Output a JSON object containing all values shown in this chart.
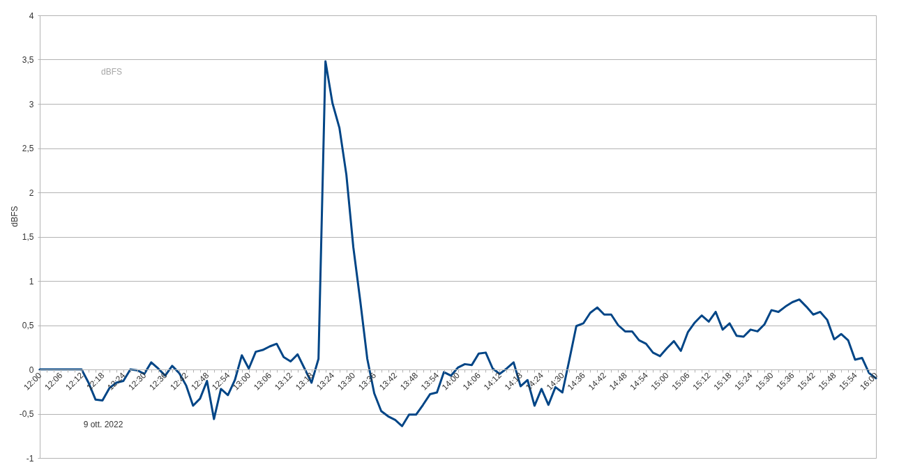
{
  "chart_data": {
    "type": "line",
    "ylabel": "dBFS",
    "annotations": [
      "dBFS",
      "9 ott. 2022"
    ],
    "color": "#004586",
    "line_style": "solid",
    "grid": "y",
    "xlim": [
      "2022-10-09T12:00",
      "2022-10-09T16:00"
    ],
    "ylim": [
      -1,
      4
    ],
    "yticks": [
      -1,
      {
        "value": -0.5,
        "label": "-0,5"
      },
      0,
      {
        "value": 0.5,
        "label": "0,5"
      },
      1,
      {
        "value": 1.5,
        "label": "1,5"
      },
      2,
      {
        "value": 2.5,
        "label": "2,5"
      },
      3,
      {
        "value": 3.5,
        "label": "3,5"
      },
      4
    ],
    "xticks": [
      {
        "value": "2022-10-09T12:00",
        "label": "12:00"
      },
      {
        "value": "2022-10-09T12:02",
        "label": null
      },
      {
        "value": "2022-10-09T12:04",
        "label": null
      },
      {
        "value": "2022-10-09T12:06",
        "label": "12:06"
      },
      {
        "value": "2022-10-09T12:08",
        "label": null
      },
      {
        "value": "2022-10-09T12:10",
        "label": null
      },
      {
        "value": "2022-10-09T12:12",
        "label": "12:12"
      },
      {
        "value": "2022-10-09T12:14",
        "label": null
      },
      {
        "value": "2022-10-09T12:16",
        "label": null
      },
      {
        "value": "2022-10-09T12:18",
        "label": "12:18"
      },
      {
        "value": "2022-10-09T12:20",
        "label": null
      },
      {
        "value": "2022-10-09T12:22",
        "label": null
      },
      {
        "value": "2022-10-09T12:24",
        "label": "12:24"
      },
      {
        "value": "2022-10-09T12:26",
        "label": null
      },
      {
        "value": "2022-10-09T12:28",
        "label": null
      },
      {
        "value": "2022-10-09T12:30",
        "label": "12:30"
      },
      {
        "value": "2022-10-09T12:32",
        "label": null
      },
      {
        "value": "2022-10-09T12:34",
        "label": null
      },
      {
        "value": "2022-10-09T12:36",
        "label": "12:36"
      },
      {
        "value": "2022-10-09T12:38",
        "label": null
      },
      {
        "value": "2022-10-09T12:40",
        "label": null
      },
      {
        "value": "2022-10-09T12:42",
        "label": "12:42"
      },
      {
        "value": "2022-10-09T12:44",
        "label": null
      },
      {
        "value": "2022-10-09T12:46",
        "label": null
      },
      {
        "value": "2022-10-09T12:48",
        "label": "12:48"
      },
      {
        "value": "2022-10-09T12:50",
        "label": null
      },
      {
        "value": "2022-10-09T12:52",
        "label": null
      },
      {
        "value": "2022-10-09T12:54",
        "label": "12:54"
      },
      {
        "value": "2022-10-09T12:56",
        "label": null
      },
      {
        "value": "2022-10-09T12:58",
        "label": null
      },
      {
        "value": "2022-10-09T13:00",
        "label": "13:00"
      },
      {
        "value": "2022-10-09T13:02",
        "label": null
      },
      {
        "value": "2022-10-09T13:04",
        "label": null
      },
      {
        "value": "2022-10-09T13:06",
        "label": "13:06"
      },
      {
        "value": "2022-10-09T13:08",
        "label": null
      },
      {
        "value": "2022-10-09T13:10",
        "label": null
      },
      {
        "value": "2022-10-09T13:12",
        "label": "13:12"
      },
      {
        "value": "2022-10-09T13:14",
        "label": null
      },
      {
        "value": "2022-10-09T13:16",
        "label": null
      },
      {
        "value": "2022-10-09T13:18",
        "label": "13:18"
      },
      {
        "value": "2022-10-09T13:20",
        "label": null
      },
      {
        "value": "2022-10-09T13:22",
        "label": null
      },
      {
        "value": "2022-10-09T13:24",
        "label": "13:24"
      },
      {
        "value": "2022-10-09T13:26",
        "label": null
      },
      {
        "value": "2022-10-09T13:28",
        "label": null
      },
      {
        "value": "2022-10-09T13:30",
        "label": "13:30"
      },
      {
        "value": "2022-10-09T13:32",
        "label": null
      },
      {
        "value": "2022-10-09T13:34",
        "label": null
      },
      {
        "value": "2022-10-09T13:36",
        "label": "13:36"
      },
      {
        "value": "2022-10-09T13:38",
        "label": null
      },
      {
        "value": "2022-10-09T13:40",
        "label": null
      },
      {
        "value": "2022-10-09T13:42",
        "label": "13:42"
      },
      {
        "value": "2022-10-09T13:44",
        "label": null
      },
      {
        "value": "2022-10-09T13:46",
        "label": null
      },
      {
        "value": "2022-10-09T13:48",
        "label": "13:48"
      },
      {
        "value": "2022-10-09T13:50",
        "label": null
      },
      {
        "value": "2022-10-09T13:52",
        "label": null
      },
      {
        "value": "2022-10-09T13:54",
        "label": "13:54"
      },
      {
        "value": "2022-10-09T13:56",
        "label": null
      },
      {
        "value": "2022-10-09T13:58",
        "label": null
      },
      {
        "value": "2022-10-09T14:00",
        "label": "14:00"
      },
      {
        "value": "2022-10-09T14:02",
        "label": null
      },
      {
        "value": "2022-10-09T14:04",
        "label": null
      },
      {
        "value": "2022-10-09T14:06",
        "label": "14:06"
      },
      {
        "value": "2022-10-09T14:08",
        "label": null
      },
      {
        "value": "2022-10-09T14:10",
        "label": null
      },
      {
        "value": "2022-10-09T14:12",
        "label": "14:12"
      },
      {
        "value": "2022-10-09T14:14",
        "label": null
      },
      {
        "value": "2022-10-09T14:16",
        "label": null
      },
      {
        "value": "2022-10-09T14:18",
        "label": "14:18"
      },
      {
        "value": "2022-10-09T14:20",
        "label": null
      },
      {
        "value": "2022-10-09T14:22",
        "label": null
      },
      {
        "value": "2022-10-09T14:24",
        "label": "14:24"
      },
      {
        "value": "2022-10-09T14:26",
        "label": null
      },
      {
        "value": "2022-10-09T14:28",
        "label": null
      },
      {
        "value": "2022-10-09T14:30",
        "label": "14:30"
      },
      {
        "value": "2022-10-09T14:32",
        "label": null
      },
      {
        "value": "2022-10-09T14:34",
        "label": null
      },
      {
        "value": "2022-10-09T14:36",
        "label": "14:36"
      },
      {
        "value": "2022-10-09T14:38",
        "label": null
      },
      {
        "value": "2022-10-09T14:40",
        "label": null
      },
      {
        "value": "2022-10-09T14:42",
        "label": "14:42"
      },
      {
        "value": "2022-10-09T14:44",
        "label": null
      },
      {
        "value": "2022-10-09T14:46",
        "label": null
      },
      {
        "value": "2022-10-09T14:48",
        "label": "14:48"
      },
      {
        "value": "2022-10-09T14:50",
        "label": null
      },
      {
        "value": "2022-10-09T14:52",
        "label": null
      },
      {
        "value": "2022-10-09T14:54",
        "label": "14:54"
      },
      {
        "value": "2022-10-09T14:56",
        "label": null
      },
      {
        "value": "2022-10-09T14:58",
        "label": null
      },
      {
        "value": "2022-10-09T15:00",
        "label": "15:00"
      },
      {
        "value": "2022-10-09T15:02",
        "label": null
      },
      {
        "value": "2022-10-09T15:04",
        "label": null
      },
      {
        "value": "2022-10-09T15:06",
        "label": "15:06"
      },
      {
        "value": "2022-10-09T15:08",
        "label": null
      },
      {
        "value": "2022-10-09T15:10",
        "label": null
      },
      {
        "value": "2022-10-09T15:12",
        "label": "15:12"
      },
      {
        "value": "2022-10-09T15:14",
        "label": null
      },
      {
        "value": "2022-10-09T15:16",
        "label": null
      },
      {
        "value": "2022-10-09T15:18",
        "label": "15:18"
      },
      {
        "value": "2022-10-09T15:20",
        "label": null
      },
      {
        "value": "2022-10-09T15:22",
        "label": null
      },
      {
        "value": "2022-10-09T15:24",
        "label": "15:24"
      },
      {
        "value": "2022-10-09T15:26",
        "label": null
      },
      {
        "value": "2022-10-09T15:28",
        "label": null
      },
      {
        "value": "2022-10-09T15:30",
        "label": "15:30"
      },
      {
        "value": "2022-10-09T15:32",
        "label": null
      },
      {
        "value": "2022-10-09T15:34",
        "label": null
      },
      {
        "value": "2022-10-09T15:36",
        "label": "15:36"
      },
      {
        "value": "2022-10-09T15:38",
        "label": null
      },
      {
        "value": "2022-10-09T15:40",
        "label": null
      },
      {
        "value": "2022-10-09T15:42",
        "label": "15:42"
      },
      {
        "value": "2022-10-09T15:44",
        "label": null
      },
      {
        "value": "2022-10-09T15:46",
        "label": null
      },
      {
        "value": "2022-10-09T15:48",
        "label": "15:48"
      },
      {
        "value": "2022-10-09T15:50",
        "label": null
      },
      {
        "value": "2022-10-09T15:52",
        "label": null
      },
      {
        "value": "2022-10-09T15:54",
        "label": "15:54"
      },
      {
        "value": "2022-10-09T15:56",
        "label": null
      },
      {
        "value": "2022-10-09T15:58",
        "label": null
      },
      {
        "value": "2022-10-09T16:00",
        "label": "16:00"
      }
    ],
    "x": [
      "2022-10-09T12:00",
      "2022-10-09T12:02",
      "2022-10-09T12:04",
      "2022-10-09T12:06",
      "2022-10-09T12:08",
      "2022-10-09T12:10",
      "2022-10-09T12:12",
      "2022-10-09T12:14",
      "2022-10-09T12:16",
      "2022-10-09T12:18",
      "2022-10-09T12:20",
      "2022-10-09T12:22",
      "2022-10-09T12:24",
      "2022-10-09T12:26",
      "2022-10-09T12:28",
      "2022-10-09T12:30",
      "2022-10-09T12:32",
      "2022-10-09T12:34",
      "2022-10-09T12:36",
      "2022-10-09T12:38",
      "2022-10-09T12:40",
      "2022-10-09T12:42",
      "2022-10-09T12:44",
      "2022-10-09T12:46",
      "2022-10-09T12:48",
      "2022-10-09T12:50",
      "2022-10-09T12:52",
      "2022-10-09T12:54",
      "2022-10-09T12:56",
      "2022-10-09T12:58",
      "2022-10-09T13:00",
      "2022-10-09T13:02",
      "2022-10-09T13:04",
      "2022-10-09T13:06",
      "2022-10-09T13:08",
      "2022-10-09T13:10",
      "2022-10-09T13:12",
      "2022-10-09T13:14",
      "2022-10-09T13:16",
      "2022-10-09T13:18",
      "2022-10-09T13:20",
      "2022-10-09T13:22",
      "2022-10-09T13:24",
      "2022-10-09T13:26",
      "2022-10-09T13:28",
      "2022-10-09T13:30",
      "2022-10-09T13:32",
      "2022-10-09T13:34",
      "2022-10-09T13:36",
      "2022-10-09T13:38",
      "2022-10-09T13:40",
      "2022-10-09T13:42",
      "2022-10-09T13:44",
      "2022-10-09T13:46",
      "2022-10-09T13:48",
      "2022-10-09T13:50",
      "2022-10-09T13:52",
      "2022-10-09T13:54",
      "2022-10-09T13:56",
      "2022-10-09T13:58",
      "2022-10-09T14:00",
      "2022-10-09T14:02",
      "2022-10-09T14:04",
      "2022-10-09T14:06",
      "2022-10-09T14:08",
      "2022-10-09T14:10",
      "2022-10-09T14:12",
      "2022-10-09T14:14",
      "2022-10-09T14:16",
      "2022-10-09T14:18",
      "2022-10-09T14:20",
      "2022-10-09T14:22",
      "2022-10-09T14:24",
      "2022-10-09T14:26",
      "2022-10-09T14:28",
      "2022-10-09T14:30",
      "2022-10-09T14:32",
      "2022-10-09T14:34",
      "2022-10-09T14:36",
      "2022-10-09T14:38",
      "2022-10-09T14:40",
      "2022-10-09T14:42",
      "2022-10-09T14:44",
      "2022-10-09T14:46",
      "2022-10-09T14:48",
      "2022-10-09T14:50",
      "2022-10-09T14:52",
      "2022-10-09T14:54",
      "2022-10-09T14:56",
      "2022-10-09T14:58",
      "2022-10-09T15:00",
      "2022-10-09T15:02",
      "2022-10-09T15:04",
      "2022-10-09T15:06",
      "2022-10-09T15:08",
      "2022-10-09T15:10",
      "2022-10-09T15:12",
      "2022-10-09T15:14",
      "2022-10-09T15:16",
      "2022-10-09T15:18",
      "2022-10-09T15:20",
      "2022-10-09T15:22",
      "2022-10-09T15:24",
      "2022-10-09T15:26",
      "2022-10-09T15:28",
      "2022-10-09T15:30",
      "2022-10-09T15:32",
      "2022-10-09T15:34",
      "2022-10-09T15:36",
      "2022-10-09T15:38",
      "2022-10-09T15:40",
      "2022-10-09T15:42",
      "2022-10-09T15:44",
      "2022-10-09T15:46",
      "2022-10-09T15:48",
      "2022-10-09T15:50",
      "2022-10-09T15:52",
      "2022-10-09T15:54",
      "2022-10-09T15:56",
      "2022-10-09T15:58",
      "2022-10-09T16:00"
    ],
    "values": [
      0,
      0,
      0,
      0,
      0,
      0,
      0,
      -0.15,
      -0.34,
      -0.35,
      -0.21,
      -0.15,
      -0.13,
      0,
      -0.01,
      -0.05,
      0.08,
      0.01,
      -0.07,
      0.04,
      -0.04,
      -0.18,
      -0.41,
      -0.33,
      -0.13,
      -0.56,
      -0.22,
      -0.29,
      -0.12,
      0.16,
      0.01,
      0.2,
      0.22,
      0.26,
      0.29,
      0.14,
      0.09,
      0.17,
      0.01,
      -0.15,
      0.12,
      3.48,
      3.01,
      2.73,
      2.2,
      1.38,
      0.77,
      0.12,
      -0.27,
      -0.47,
      -0.53,
      -0.57,
      -0.64,
      -0.51,
      -0.51,
      -0.4,
      -0.28,
      -0.26,
      -0.03,
      -0.07,
      0.02,
      0.06,
      0.05,
      0.18,
      0.19,
      0.01,
      -0.05,
      0.01,
      0.08,
      -0.19,
      -0.12,
      -0.41,
      -0.22,
      -0.4,
      -0.2,
      -0.26,
      0.11,
      0.49,
      0.52,
      0.64,
      0.7,
      0.62,
      0.62,
      0.5,
      0.43,
      0.43,
      0.33,
      0.29,
      0.19,
      0.15,
      0.24,
      0.32,
      0.21,
      0.42,
      0.53,
      0.61,
      0.54,
      0.65,
      0.45,
      0.52,
      0.38,
      0.37,
      0.45,
      0.43,
      0.51,
      0.67,
      0.65,
      0.71,
      0.76,
      0.79,
      0.71,
      0.62,
      0.65,
      0.56,
      0.34,
      0.4,
      0.33,
      0.11,
      0.13,
      -0.04,
      -0.1
    ]
  }
}
